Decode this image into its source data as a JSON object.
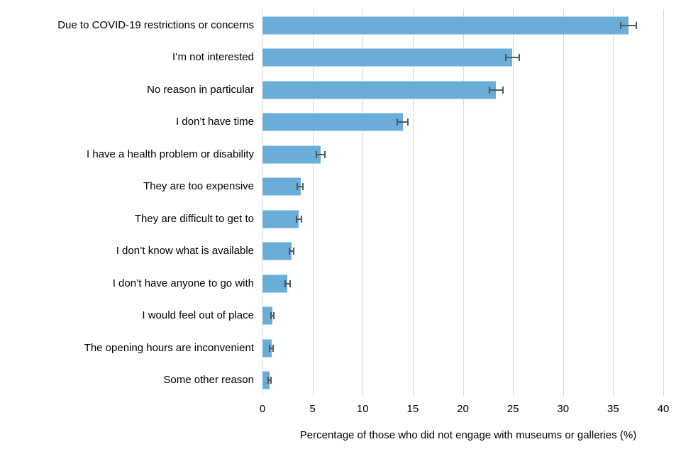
{
  "chart_data": {
    "type": "bar",
    "orientation": "horizontal",
    "title": "",
    "xlabel": "Percentage of those who did not engage with museums or galleries (%)",
    "ylabel": "",
    "xlim": [
      0,
      40
    ],
    "xticks": [
      0,
      5,
      10,
      15,
      20,
      25,
      30,
      35,
      40
    ],
    "grid": true,
    "legend": "none",
    "categories": [
      "Due to COVID-19 restrictions or concerns",
      "I’m not interested",
      "No reason in particular",
      "I don’t have time",
      "I have a health problem or disability",
      "They are too expensive",
      "They are difficult to get to",
      "I don’t know what is available",
      "I don’t have anyone to go with",
      "I would feel out of place",
      "The opening hours are inconvenient",
      "Some other reason"
    ],
    "values": [
      36.5,
      24.9,
      23.3,
      14.0,
      5.8,
      3.8,
      3.6,
      2.9,
      2.5,
      1.0,
      0.9,
      0.7
    ],
    "error_low": [
      35.7,
      24.2,
      22.6,
      13.4,
      5.3,
      3.4,
      3.3,
      2.6,
      2.2,
      0.75,
      0.65,
      0.5
    ],
    "error_high": [
      37.4,
      25.7,
      24.1,
      14.6,
      6.3,
      4.1,
      4.0,
      3.2,
      2.8,
      1.2,
      1.1,
      0.9
    ],
    "colors": {
      "bar": "#6aadd8",
      "error_bar": "#555555",
      "gridline": "#d9d9d9",
      "text": "#000000",
      "background": "#ffffff"
    }
  }
}
